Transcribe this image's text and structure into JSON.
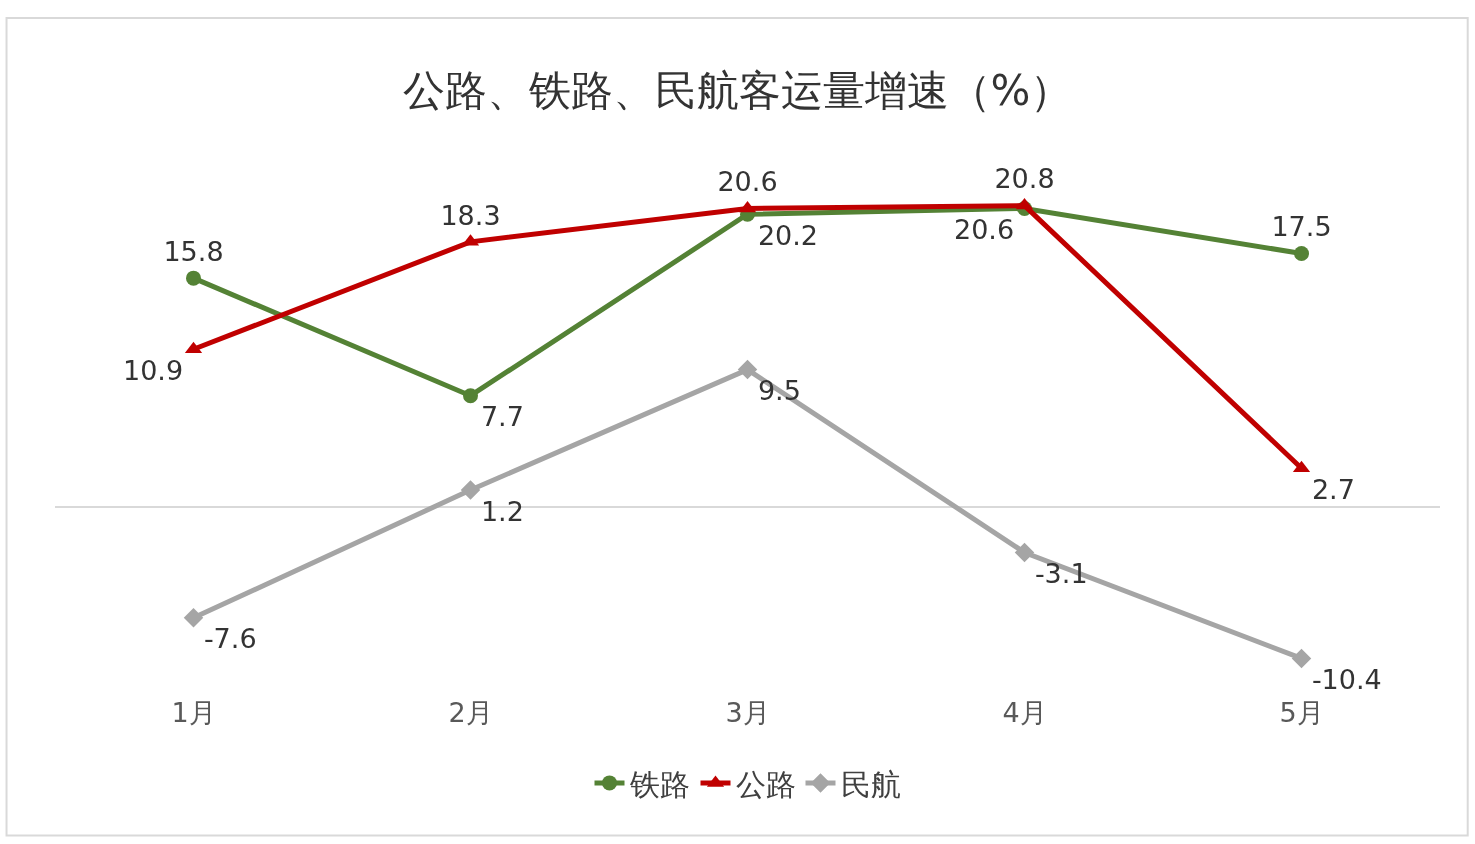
{
  "chart_data": {
    "type": "line",
    "title": "公路、铁路、民航客运量增速（%）",
    "categories": [
      "1月",
      "2月",
      "3月",
      "4月",
      "5月"
    ],
    "series": [
      {
        "name": "铁路",
        "color": "#548235",
        "marker": "circle",
        "values": [
          15.8,
          7.7,
          20.2,
          20.6,
          17.5
        ]
      },
      {
        "name": "公路",
        "color": "#c00000",
        "marker": "triangle",
        "values": [
          10.9,
          18.3,
          20.6,
          20.8,
          2.7
        ]
      },
      {
        "name": "民航",
        "color": "#a5a5a5",
        "marker": "diamond",
        "values": [
          -7.6,
          1.2,
          9.5,
          -3.1,
          -10.4
        ]
      }
    ],
    "data_labels": true,
    "legend": "bottom",
    "line_style": "solid"
  }
}
